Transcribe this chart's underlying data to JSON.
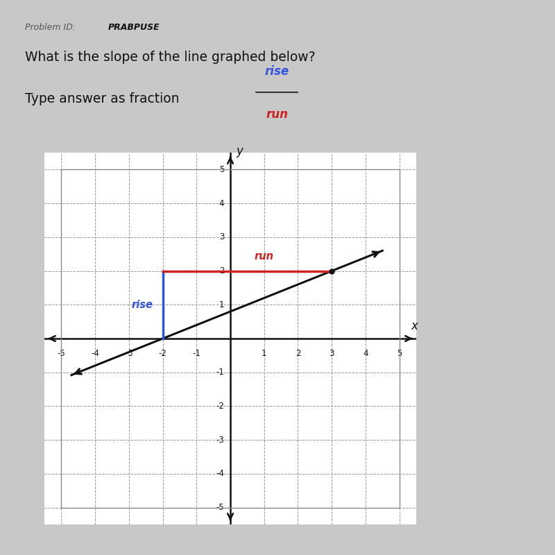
{
  "title_line1": "What is the slope of the line graphed below?",
  "title_line2": "Type answer as fraction",
  "problem_id": "Problem ID:   PRABPUSE",
  "rise_label": "rise",
  "run_label": "run",
  "xlim": [
    -5.5,
    5.5
  ],
  "ylim": [
    -5.5,
    5.5
  ],
  "xticks": [
    -5,
    -4,
    -3,
    -2,
    -1,
    0,
    1,
    2,
    3,
    4,
    5
  ],
  "yticks": [
    -5,
    -4,
    -3,
    -2,
    -1,
    0,
    1,
    2,
    3,
    4,
    5
  ],
  "slope": 0.4,
  "slope_intercept": 0.8,
  "line_x_start": -4.7,
  "line_x_end": 4.5,
  "rise_x": -2,
  "rise_y1": 0,
  "rise_y2": 2,
  "run_y": 2,
  "run_x1": -2,
  "run_x2": 3,
  "dot_x": 3,
  "dot_y": 2,
  "line_color": "#111111",
  "rise_color": "#3355dd",
  "run_color": "#cc2222",
  "bg_outer": "#c8c8c8",
  "bg_white": "#ffffff",
  "bg_graph": "#f5f5f5",
  "grid_color": "#999999",
  "axis_color": "#111111",
  "text_color": "#111111",
  "rise_text_color": "#3355dd",
  "run_text_color": "#cc2222",
  "problem_id_color": "#555555",
  "axis_label_x": "x",
  "axis_label_y": "y"
}
